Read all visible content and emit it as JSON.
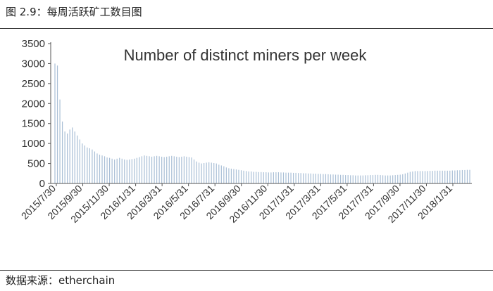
{
  "figure": {
    "caption": "图 2.9：每周活跃矿工数目图",
    "source": "数据来源：etherchain"
  },
  "chart_data": {
    "type": "bar",
    "title": "Number of distinct miners per week",
    "xlabel": "",
    "ylabel": "",
    "ylim": [
      0,
      3500
    ],
    "yticks": [
      0,
      500,
      1000,
      1500,
      2000,
      2500,
      3000,
      3500
    ],
    "xtick_labels": [
      "2015/7/30",
      "2015/9/30",
      "2015/11/30",
      "2016/1/31",
      "2016/3/31",
      "2016/5/31",
      "2016/7/31",
      "2016/9/30",
      "2016/11/30",
      "2017/1/31",
      "2017/3/31",
      "2017/5/31",
      "2017/7/31",
      "2017/9/30",
      "2017/11/30",
      "2018/1/31"
    ],
    "grid": false,
    "legend": "none",
    "bar_color": "#a9bfd6",
    "values": [
      3000,
      2950,
      2100,
      1550,
      1300,
      1250,
      1350,
      1400,
      1300,
      1200,
      1100,
      1000,
      950,
      900,
      880,
      850,
      800,
      750,
      720,
      700,
      680,
      650,
      640,
      620,
      600,
      620,
      640,
      620,
      600,
      590,
      600,
      610,
      620,
      640,
      660,
      680,
      700,
      690,
      680,
      670,
      680,
      690,
      680,
      670,
      660,
      670,
      680,
      690,
      680,
      670,
      660,
      670,
      680,
      670,
      660,
      650,
      600,
      550,
      520,
      500,
      510,
      520,
      530,
      520,
      510,
      500,
      470,
      450,
      430,
      400,
      380,
      370,
      360,
      350,
      340,
      330,
      320,
      310,
      300,
      300,
      290,
      290,
      285,
      285,
      280,
      280,
      275,
      275,
      280,
      280,
      280,
      275,
      275,
      270,
      270,
      270,
      265,
      265,
      260,
      260,
      255,
      255,
      250,
      250,
      245,
      245,
      240,
      240,
      235,
      235,
      230,
      225,
      225,
      220,
      220,
      215,
      215,
      210,
      210,
      205,
      205,
      200,
      200,
      200,
      200,
      205,
      205,
      210,
      210,
      215,
      215,
      210,
      205,
      200,
      200,
      200,
      205,
      210,
      215,
      220,
      230,
      250,
      270,
      290,
      300,
      310,
      310,
      310,
      310,
      310,
      310,
      315,
      315,
      320,
      320,
      320,
      320,
      320,
      320,
      320,
      325,
      325,
      330,
      330,
      335,
      335,
      340,
      340
    ]
  }
}
